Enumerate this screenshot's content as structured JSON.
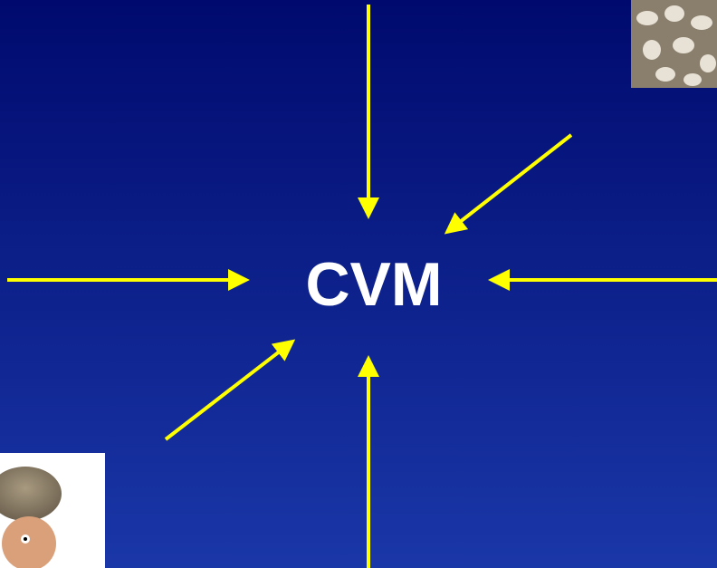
{
  "slide": {
    "center_label": "CVM"
  }
}
